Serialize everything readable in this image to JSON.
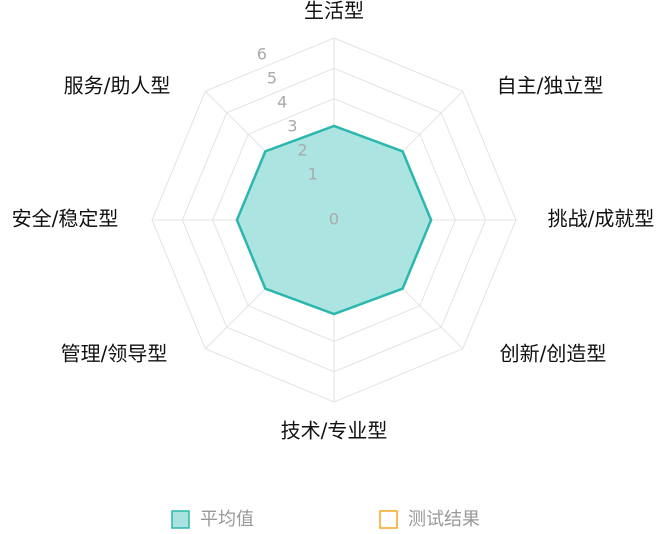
{
  "chart_data": {
    "type": "radar",
    "categories": [
      "生活型",
      "自主/独立型",
      "挑战/成就型",
      "创新/创造型",
      "技术/专业型",
      "管理/领导型",
      "安全/稳定型",
      "服务/助人型"
    ],
    "series": [
      {
        "name": "平均值",
        "color": "#2bb7ad",
        "fill": "#a8e3df",
        "values": [
          3.1,
          3.2,
          3.2,
          3.2,
          3.1,
          3.2,
          3.2,
          3.2
        ]
      },
      {
        "name": "测试结果",
        "color": "#f5a623",
        "values": [
          null,
          null,
          null,
          null,
          null,
          null,
          null,
          null
        ]
      }
    ],
    "rlim": [
      0,
      6
    ],
    "rticks": [
      0,
      1,
      2,
      3,
      4,
      5,
      6
    ],
    "grid": true
  }
}
